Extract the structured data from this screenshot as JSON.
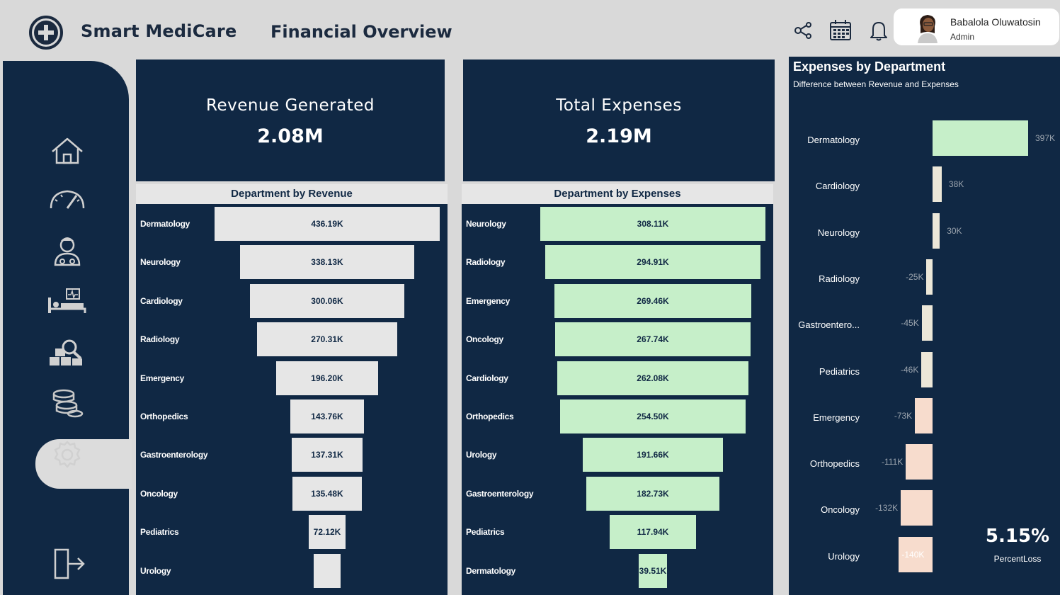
{
  "header": {
    "brand": "Smart MediCare",
    "title": "Financial Overview",
    "icons": [
      "share-icon",
      "calendar-icon",
      "bell-icon"
    ]
  },
  "profile": {
    "name": "Babalola Oluwatosin",
    "role": "Admin"
  },
  "sidebar": {
    "items": [
      {
        "name": "home-icon"
      },
      {
        "name": "gauge-icon"
      },
      {
        "name": "doctor-icon"
      },
      {
        "name": "hospital-bed-icon"
      },
      {
        "name": "inventory-search-icon"
      },
      {
        "name": "coins-icon",
        "active": true
      },
      {
        "name": "gear-icon"
      }
    ],
    "logout": "logout-icon"
  },
  "kpis": {
    "revenue": {
      "label": "Revenue Generated",
      "value": "2.08M"
    },
    "expenses": {
      "label": "Total Expenses",
      "value": "2.19M"
    },
    "percent_loss": {
      "value": "5.15%",
      "label": "PercentLoss"
    }
  },
  "colors": {
    "navy": "#102844",
    "revenue_bar": "#e6e6e6",
    "expense_bar": "#c6efc9",
    "positive": "#c6efc9",
    "cream": "#ece7d8",
    "peach": "#f7dccd"
  },
  "chart_data": [
    {
      "type": "bar",
      "title": "Department by Revenue",
      "categories": [
        "Dermatology",
        "Neurology",
        "Cardiology",
        "Radiology",
        "Emergency",
        "Orthopedics",
        "Gastroenterology",
        "Oncology",
        "Pediatrics",
        "Urology"
      ],
      "values": [
        436.19,
        338.13,
        300.06,
        270.31,
        196.2,
        143.76,
        137.31,
        135.48,
        72.12,
        52
      ],
      "labels": [
        "436.19K",
        "338.13K",
        "300.06K",
        "270.31K",
        "196.20K",
        "143.76K",
        "137.31K",
        "135.48K",
        "72.12K",
        ""
      ]
    },
    {
      "type": "bar",
      "title": "Department by Expenses",
      "categories": [
        "Neurology",
        "Radiology",
        "Emergency",
        "Oncology",
        "Cardiology",
        "Orthopedics",
        "Urology",
        "Gastroenterology",
        "Pediatrics",
        "Dermatology"
      ],
      "values": [
        308.11,
        294.91,
        269.46,
        267.74,
        262.08,
        254.5,
        191.66,
        182.73,
        117.94,
        39.51
      ],
      "labels": [
        "308.11K",
        "294.91K",
        "269.46K",
        "267.74K",
        "262.08K",
        "254.50K",
        "191.66K",
        "182.73K",
        "117.94K",
        "39.51K"
      ]
    },
    {
      "type": "bar",
      "title": "Expenses by Department",
      "subtitle": "Difference between Revenue and Expenses",
      "categories": [
        "Dermatology",
        "Cardiology",
        "Neurology",
        "Radiology",
        "Gastroentero...",
        "Pediatrics",
        "Emergency",
        "Orthopedics",
        "Oncology",
        "Urology"
      ],
      "values": [
        397,
        38,
        30,
        -25,
        -45,
        -46,
        -73,
        -111,
        -132,
        -140
      ],
      "labels": [
        "397K",
        "38K",
        "30K",
        "-25K",
        "-45K",
        "-46K",
        "-73K",
        "-111K",
        "-132K",
        "-140K"
      ]
    }
  ]
}
